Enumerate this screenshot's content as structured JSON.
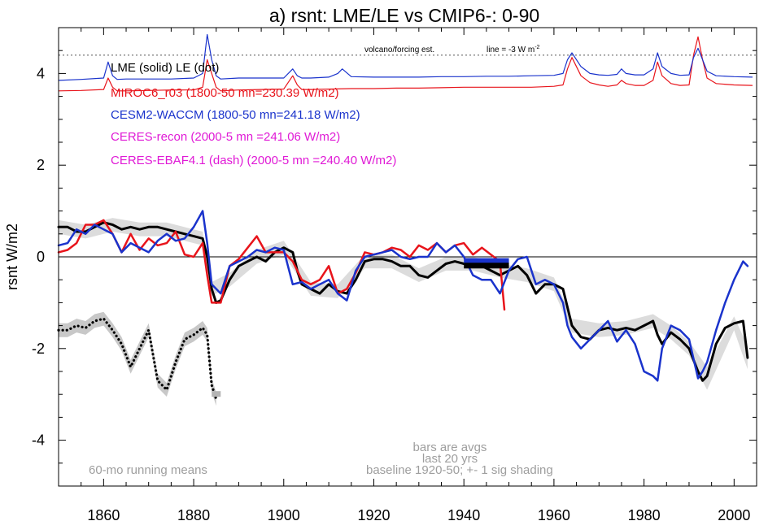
{
  "chart_data": {
    "type": "line",
    "title": "a) rsnt: LME/LE vs CMIP6-: 0-90",
    "ylabel": "rsnt W/m2",
    "xlabel": "",
    "xlim": [
      1850,
      2005
    ],
    "ylim": [
      -5,
      5
    ],
    "x_ticks": [
      1860,
      1880,
      1900,
      1920,
      1940,
      1960,
      1980,
      2000
    ],
    "y_ticks": [
      -4,
      -2,
      0,
      2,
      4
    ],
    "zero_line": true,
    "legend": [
      {
        "text": "LME (solid)   LE (dot)",
        "color": "#000000"
      },
      {
        "text": "MIROC6_r03 (1800-50 mn=230.39 W/m2)",
        "color": "#e8141b"
      },
      {
        "text": "CESM2-WACCM (1800-50 mn=241.18 W/m2)",
        "color": "#1a33cc"
      },
      {
        "text": "CERES-recon (2000-5 mn =241.06 W/m2)",
        "color": "#e01ad6"
      },
      {
        "text": "CERES-EBAF4.1 (dash) (2000-5 mn =240.40 W/m2)",
        "color": "#e01ad6"
      }
    ],
    "annotations": {
      "volcano_label": "volcano/forcing est.",
      "line_label": "line = -3 W m",
      "line_label_sup": "-2",
      "bottom_left": "60-mo running means",
      "bars_line1": "bars are avgs",
      "bars_line2": "last 20 yrs",
      "baseline": "baseline 1920-50; +- 1 sig shading"
    },
    "volcano_reference_y": 4.4,
    "series": [
      {
        "name": "LME (solid)",
        "color": "#000000",
        "x": [
          1850,
          1852,
          1854,
          1856,
          1858,
          1860,
          1862,
          1864,
          1866,
          1868,
          1870,
          1872,
          1874,
          1876,
          1878,
          1880,
          1882,
          1883,
          1884,
          1885,
          1886,
          1888,
          1890,
          1892,
          1894,
          1896,
          1898,
          1900,
          1902,
          1903,
          1904,
          1906,
          1908,
          1910,
          1912,
          1914,
          1916,
          1918,
          1920,
          1922,
          1924,
          1926,
          1928,
          1930,
          1932,
          1934,
          1936,
          1938,
          1940,
          1942,
          1944,
          1946,
          1948,
          1950,
          1952,
          1954,
          1956,
          1958,
          1960,
          1962,
          1963,
          1964,
          1966,
          1968,
          1970,
          1972,
          1974,
          1976,
          1978,
          1980,
          1982,
          1983,
          1984,
          1986,
          1988,
          1990,
          1992,
          1993,
          1994,
          1996,
          1998,
          2000,
          2002,
          2003
        ],
        "y": [
          0.65,
          0.65,
          0.55,
          0.55,
          0.65,
          0.75,
          0.7,
          0.6,
          0.65,
          0.6,
          0.65,
          0.65,
          0.6,
          0.55,
          0.5,
          0.45,
          0.4,
          0.0,
          -0.7,
          -1.0,
          -0.95,
          -0.5,
          -0.2,
          -0.1,
          0.0,
          -0.1,
          0.1,
          0.2,
          0.1,
          -0.3,
          -0.6,
          -0.7,
          -0.8,
          -0.6,
          -0.75,
          -0.8,
          -0.5,
          -0.1,
          -0.05,
          -0.05,
          -0.1,
          -0.2,
          -0.2,
          -0.4,
          -0.45,
          -0.3,
          -0.15,
          -0.1,
          -0.15,
          -0.15,
          -0.2,
          -0.3,
          -0.4,
          -0.3,
          -0.2,
          -0.4,
          -0.8,
          -0.6,
          -0.6,
          -0.7,
          -1.1,
          -1.5,
          -1.75,
          -1.8,
          -1.6,
          -1.55,
          -1.6,
          -1.55,
          -1.6,
          -1.5,
          -1.4,
          -1.7,
          -1.9,
          -1.65,
          -1.8,
          -2.0,
          -2.5,
          -2.7,
          -2.6,
          -1.9,
          -1.55,
          -1.45,
          -1.4,
          -2.2
        ]
      },
      {
        "name": "LE (dot)",
        "color": "#000000",
        "x": [
          1850,
          1852,
          1854,
          1856,
          1858,
          1860,
          1862,
          1864,
          1866,
          1868,
          1870,
          1872,
          1874,
          1876,
          1878,
          1880,
          1882,
          1883,
          1884,
          1885
        ],
        "y": [
          -1.6,
          -1.6,
          -1.5,
          -1.55,
          -1.4,
          -1.35,
          -1.6,
          -1.9,
          -2.4,
          -2.0,
          -1.6,
          -2.7,
          -2.9,
          -2.3,
          -1.8,
          -1.7,
          -1.55,
          -1.7,
          -2.8,
          -3.1
        ]
      },
      {
        "name": "MIROC6_r03",
        "color": "#e8141b",
        "x": [
          1850,
          1852,
          1854,
          1856,
          1858,
          1860,
          1862,
          1864,
          1866,
          1868,
          1870,
          1872,
          1874,
          1876,
          1878,
          1880,
          1882,
          1883,
          1884,
          1886,
          1888,
          1890,
          1892,
          1894,
          1896,
          1898,
          1900,
          1902,
          1904,
          1906,
          1908,
          1910,
          1912,
          1914,
          1916,
          1918,
          1920,
          1922,
          1924,
          1926,
          1928,
          1930,
          1932,
          1934,
          1936,
          1938,
          1940,
          1942,
          1944,
          1946,
          1948,
          1949
        ],
        "y": [
          0.1,
          0.15,
          0.3,
          0.7,
          0.7,
          0.8,
          0.5,
          0.1,
          0.5,
          0.15,
          0.4,
          0.25,
          0.3,
          0.55,
          0.05,
          0.0,
          0.3,
          -0.4,
          -1.0,
          -1.0,
          -0.2,
          -0.05,
          0.2,
          0.45,
          0.1,
          0.1,
          0.1,
          -0.1,
          -0.5,
          -0.6,
          -0.5,
          -0.2,
          -0.8,
          -0.7,
          -0.35,
          0.1,
          0.05,
          0.1,
          0.2,
          0.15,
          0.0,
          0.25,
          0.15,
          0.3,
          0.1,
          0.25,
          0.3,
          0.05,
          0.2,
          0.05,
          -0.1,
          -1.15
        ]
      },
      {
        "name": "CESM2-WACCM",
        "color": "#1a33cc",
        "x": [
          1850,
          1852,
          1854,
          1856,
          1858,
          1860,
          1862,
          1864,
          1866,
          1868,
          1870,
          1872,
          1874,
          1876,
          1878,
          1880,
          1882,
          1883,
          1884,
          1886,
          1888,
          1890,
          1892,
          1894,
          1896,
          1898,
          1900,
          1902,
          1904,
          1906,
          1908,
          1910,
          1912,
          1914,
          1916,
          1918,
          1920,
          1922,
          1924,
          1926,
          1928,
          1930,
          1932,
          1934,
          1936,
          1938,
          1940,
          1942,
          1944,
          1946,
          1948,
          1950,
          1952,
          1954,
          1956,
          1958,
          1960,
          1962,
          1963,
          1964,
          1966,
          1968,
          1970,
          1972,
          1974,
          1976,
          1978,
          1980,
          1982,
          1983,
          1984,
          1986,
          1988,
          1990,
          1992,
          1993,
          1994,
          1996,
          1998,
          2000,
          2002,
          2003
        ],
        "y": [
          0.25,
          0.3,
          0.6,
          0.5,
          0.7,
          0.6,
          0.5,
          0.1,
          0.3,
          0.2,
          0.1,
          0.35,
          0.5,
          0.35,
          0.4,
          0.65,
          1.0,
          0.3,
          -0.6,
          -0.8,
          -0.2,
          -0.1,
          0.0,
          0.15,
          0.1,
          0.2,
          0.15,
          -0.6,
          -0.55,
          -0.7,
          -0.6,
          -0.5,
          -0.8,
          -0.95,
          -0.3,
          0.0,
          0.05,
          0.1,
          0.15,
          0.0,
          -0.05,
          0.0,
          0.0,
          0.3,
          0.1,
          0.25,
          0.0,
          -0.4,
          -0.5,
          -0.5,
          -0.8,
          -0.3,
          -0.05,
          0.0,
          -0.6,
          -0.5,
          -0.6,
          -1.0,
          -1.5,
          -1.75,
          -2.0,
          -1.8,
          -1.6,
          -1.4,
          -1.85,
          -1.6,
          -1.9,
          -2.5,
          -2.6,
          -2.7,
          -2.0,
          -1.5,
          -1.6,
          -1.8,
          -2.65,
          -2.5,
          -2.3,
          -1.6,
          -1.0,
          -0.5,
          -0.1,
          -0.2
        ]
      },
      {
        "name": "MIROC6 volcano/forcing est.",
        "color": "#e8141b",
        "x": [
          1850,
          1855,
          1860,
          1861,
          1862,
          1863,
          1865,
          1870,
          1875,
          1880,
          1882,
          1883,
          1884,
          1885,
          1886,
          1890,
          1895,
          1900,
          1902,
          1903,
          1904,
          1906,
          1910,
          1915,
          1920,
          1925,
          1930,
          1935,
          1940,
          1945,
          1950,
          1955,
          1960,
          1962,
          1963,
          1964,
          1966,
          1968,
          1970,
          1972,
          1974,
          1975,
          1976,
          1978,
          1980,
          1982,
          1983,
          1984,
          1986,
          1988,
          1990,
          1991,
          1992,
          1993,
          1994,
          1996,
          2000,
          2004
        ],
        "y": [
          3.62,
          3.63,
          3.65,
          3.9,
          3.7,
          3.62,
          3.62,
          3.63,
          3.64,
          3.64,
          3.7,
          4.3,
          4.0,
          3.7,
          3.62,
          3.64,
          3.65,
          3.66,
          3.95,
          3.75,
          3.65,
          3.65,
          3.66,
          3.67,
          3.67,
          3.68,
          3.68,
          3.69,
          3.7,
          3.7,
          3.7,
          3.7,
          3.72,
          3.75,
          4.1,
          4.35,
          3.95,
          3.8,
          3.75,
          3.72,
          3.75,
          3.85,
          3.78,
          3.74,
          3.74,
          3.85,
          4.25,
          3.95,
          3.78,
          3.74,
          3.75,
          4.4,
          4.8,
          4.3,
          3.9,
          3.78,
          3.75,
          3.74
        ]
      },
      {
        "name": "CESM2-WACCM volcano/forcing est.",
        "color": "#1a33cc",
        "x": [
          1850,
          1855,
          1860,
          1861,
          1862,
          1863,
          1865,
          1870,
          1875,
          1880,
          1882,
          1883,
          1884,
          1885,
          1886,
          1890,
          1895,
          1900,
          1902,
          1903,
          1904,
          1906,
          1910,
          1912,
          1913,
          1915,
          1920,
          1925,
          1930,
          1935,
          1940,
          1945,
          1950,
          1955,
          1960,
          1962,
          1963,
          1964,
          1966,
          1968,
          1970,
          1972,
          1974,
          1975,
          1976,
          1978,
          1980,
          1982,
          1983,
          1984,
          1986,
          1988,
          1990,
          1991,
          1992,
          1993,
          1994,
          1996,
          2000,
          2004
        ],
        "y": [
          3.85,
          3.87,
          3.9,
          4.25,
          3.95,
          3.87,
          3.88,
          3.88,
          3.88,
          3.9,
          4.0,
          4.85,
          4.3,
          3.95,
          3.88,
          3.9,
          3.9,
          3.9,
          4.1,
          3.95,
          3.9,
          3.9,
          3.92,
          4.0,
          4.1,
          3.93,
          3.92,
          3.92,
          3.92,
          3.93,
          3.93,
          3.94,
          3.94,
          3.95,
          3.96,
          4.0,
          4.3,
          4.45,
          4.15,
          4.0,
          3.97,
          3.96,
          3.98,
          4.1,
          4.0,
          3.97,
          3.97,
          4.1,
          4.45,
          4.15,
          4.0,
          3.96,
          3.97,
          4.35,
          4.55,
          4.3,
          4.05,
          3.95,
          3.93,
          3.92
        ]
      }
    ],
    "shading": [
      {
        "series": "LME (solid)",
        "color": "#dcdcdc",
        "x": [
          1850,
          1856,
          1862,
          1868,
          1874,
          1880,
          1882,
          1884,
          1888,
          1894,
          1900,
          1906,
          1912,
          1918,
          1924,
          1930,
          1936,
          1942,
          1948,
          1954,
          1960,
          1964,
          1970,
          1976,
          1982,
          1986,
          1990,
          1994,
          2000,
          2003
        ],
        "upper": [
          0.8,
          0.7,
          0.85,
          0.75,
          0.75,
          0.6,
          0.55,
          -0.55,
          -0.35,
          0.15,
          0.35,
          -0.55,
          -0.6,
          0.05,
          0.05,
          -0.25,
          0.0,
          0.0,
          -0.15,
          -0.25,
          -0.45,
          -1.35,
          -1.45,
          -1.4,
          -1.25,
          -1.5,
          -1.85,
          -2.4,
          -1.3,
          -1.95
        ],
        "lower": [
          0.5,
          0.4,
          0.55,
          0.45,
          0.45,
          0.3,
          0.25,
          -0.85,
          -0.65,
          -0.15,
          0.05,
          -0.85,
          -0.9,
          -0.25,
          -0.25,
          -0.55,
          -0.3,
          -0.3,
          -0.45,
          -0.55,
          -0.75,
          -1.65,
          -1.75,
          -1.7,
          -1.55,
          -1.8,
          -2.15,
          -2.9,
          -1.6,
          -2.45
        ]
      },
      {
        "series": "LE (dot)",
        "color": "#c8c8c8",
        "x": [
          1850,
          1852,
          1854,
          1856,
          1858,
          1860,
          1862,
          1864,
          1866,
          1868,
          1870,
          1872,
          1874,
          1876,
          1878,
          1880,
          1882,
          1883,
          1884,
          1885
        ],
        "upper": [
          -1.45,
          -1.45,
          -1.35,
          -1.4,
          -1.25,
          -1.2,
          -1.45,
          -1.75,
          -2.25,
          -1.85,
          -1.45,
          -2.55,
          -2.75,
          -2.15,
          -1.65,
          -1.55,
          -1.4,
          -1.55,
          -2.65,
          -2.95
        ],
        "lower": [
          -1.75,
          -1.75,
          -1.65,
          -1.7,
          -1.55,
          -1.5,
          -1.75,
          -2.05,
          -2.55,
          -2.15,
          -1.75,
          -2.85,
          -3.05,
          -2.45,
          -1.95,
          -1.85,
          -1.7,
          -1.85,
          -2.95,
          -3.25
        ]
      }
    ],
    "bars": [
      {
        "series": "CESM2-WACCM",
        "color": "#1a33cc",
        "x_start": 1940,
        "x_end": 1950,
        "y": -0.1
      },
      {
        "series": "LME (solid)",
        "color": "#000000",
        "x_start": 1940,
        "x_end": 1950,
        "y": -0.2
      },
      {
        "series": "LE (dot)",
        "color": "#b4b4b4",
        "x_start": 1884,
        "x_end": 1886,
        "y": -3.0
      }
    ]
  }
}
